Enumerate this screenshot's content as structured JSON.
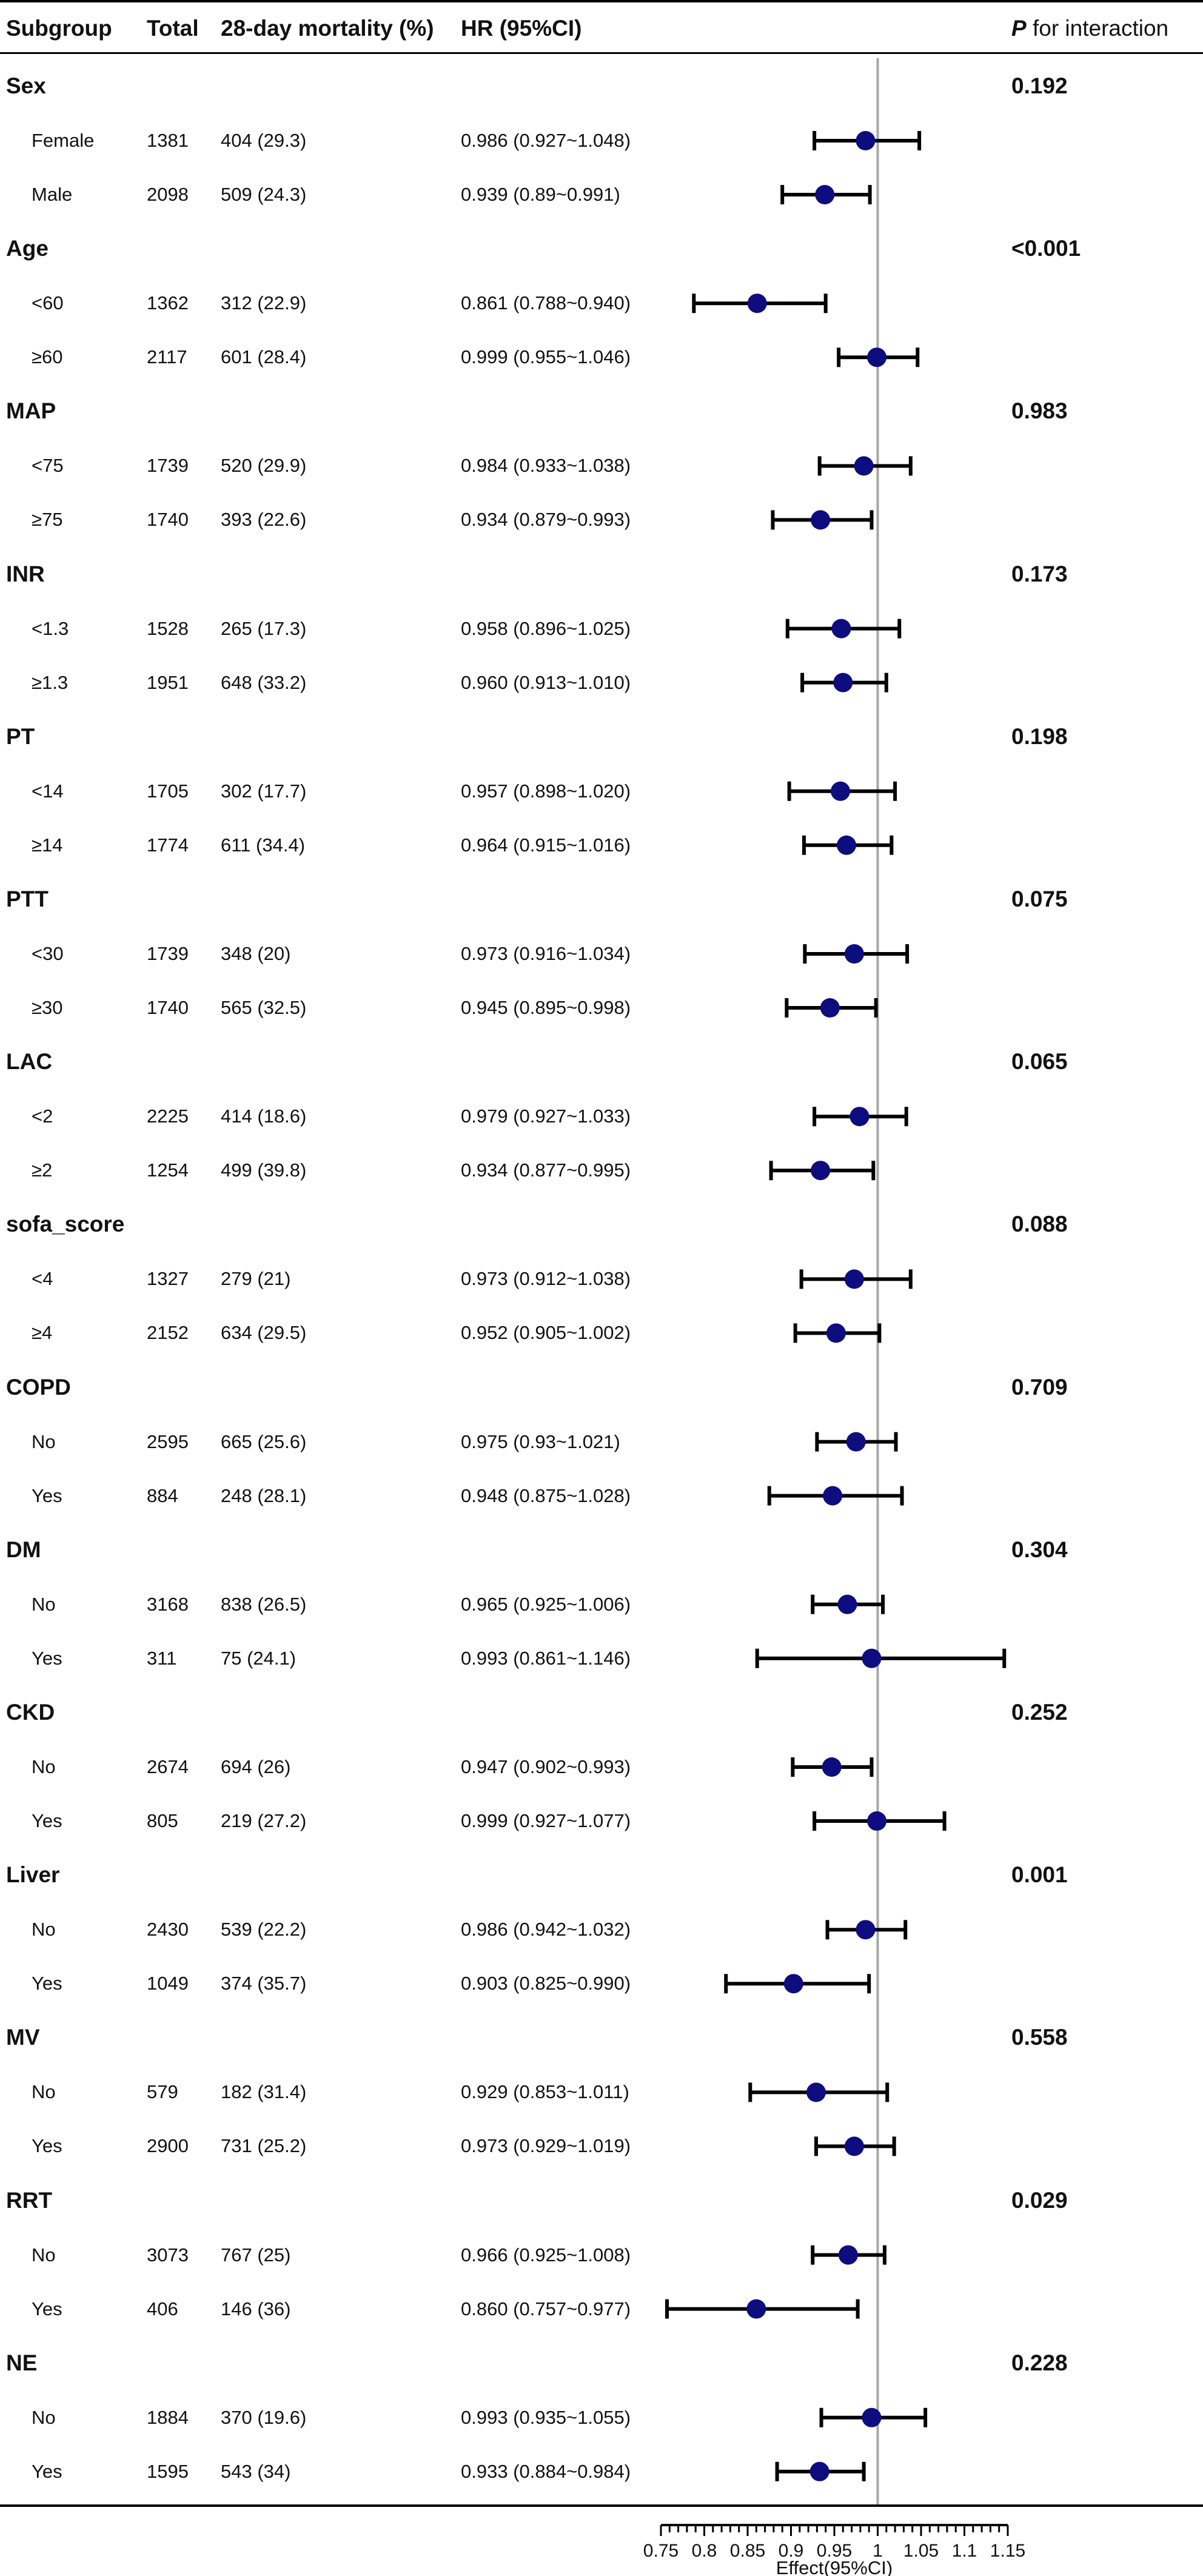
{
  "header": {
    "subgroup": "Subgroup",
    "total": "Total",
    "mortality": "28-day mortality (%)",
    "hr": "HR (95%CI)",
    "p_italic": "P",
    "p_rest": " for interaction"
  },
  "chart_data": {
    "type": "forest",
    "xlabel": "Effect(95%CI)",
    "xlim": [
      0.75,
      1.15
    ],
    "xticks": [
      "0.75",
      "0.8",
      "0.85",
      "0.9",
      "0.95",
      "1",
      "1.05",
      "1.1",
      "1.15"
    ],
    "reference_line": 1,
    "groups": [
      {
        "name": "Sex",
        "p": "0.192",
        "rows": [
          {
            "label": "Female",
            "total": "1381",
            "mortality": "404 (29.3)",
            "hr_text": "0.986 (0.927~1.048)",
            "hr": 0.986,
            "lo": 0.927,
            "hi": 1.048
          },
          {
            "label": "Male",
            "total": "2098",
            "mortality": "509 (24.3)",
            "hr_text": "0.939 (0.89~0.991)",
            "hr": 0.939,
            "lo": 0.89,
            "hi": 0.991
          }
        ]
      },
      {
        "name": "Age",
        "p": "<0.001",
        "rows": [
          {
            "label": "<60",
            "total": "1362",
            "mortality": "312 (22.9)",
            "hr_text": "0.861 (0.788~0.940)",
            "hr": 0.861,
            "lo": 0.788,
            "hi": 0.94
          },
          {
            "label": "≥60",
            "total": "2117",
            "mortality": "601 (28.4)",
            "hr_text": "0.999 (0.955~1.046)",
            "hr": 0.999,
            "lo": 0.955,
            "hi": 1.046
          }
        ]
      },
      {
        "name": "MAP",
        "p": "0.983",
        "rows": [
          {
            "label": "<75",
            "total": "1739",
            "mortality": "520 (29.9)",
            "hr_text": "0.984 (0.933~1.038)",
            "hr": 0.984,
            "lo": 0.933,
            "hi": 1.038
          },
          {
            "label": "≥75",
            "total": "1740",
            "mortality": "393 (22.6)",
            "hr_text": "0.934 (0.879~0.993)",
            "hr": 0.934,
            "lo": 0.879,
            "hi": 0.993
          }
        ]
      },
      {
        "name": "INR",
        "p": "0.173",
        "rows": [
          {
            "label": "<1.3",
            "total": "1528",
            "mortality": "265 (17.3)",
            "hr_text": "0.958 (0.896~1.025)",
            "hr": 0.958,
            "lo": 0.896,
            "hi": 1.025
          },
          {
            "label": "≥1.3",
            "total": "1951",
            "mortality": "648 (33.2)",
            "hr_text": "0.960 (0.913~1.010)",
            "hr": 0.96,
            "lo": 0.913,
            "hi": 1.01
          }
        ]
      },
      {
        "name": "PT",
        "p": "0.198",
        "rows": [
          {
            "label": "<14",
            "total": "1705",
            "mortality": "302 (17.7)",
            "hr_text": "0.957 (0.898~1.020)",
            "hr": 0.957,
            "lo": 0.898,
            "hi": 1.02
          },
          {
            "label": "≥14",
            "total": "1774",
            "mortality": "611 (34.4)",
            "hr_text": "0.964 (0.915~1.016)",
            "hr": 0.964,
            "lo": 0.915,
            "hi": 1.016
          }
        ]
      },
      {
        "name": "PTT",
        "p": "0.075",
        "rows": [
          {
            "label": "<30",
            "total": "1739",
            "mortality": "348 (20)",
            "hr_text": "0.973 (0.916~1.034)",
            "hr": 0.973,
            "lo": 0.916,
            "hi": 1.034
          },
          {
            "label": "≥30",
            "total": "1740",
            "mortality": "565 (32.5)",
            "hr_text": "0.945 (0.895~0.998)",
            "hr": 0.945,
            "lo": 0.895,
            "hi": 0.998
          }
        ]
      },
      {
        "name": "LAC",
        "p": "0.065",
        "rows": [
          {
            "label": "<2",
            "total": "2225",
            "mortality": "414 (18.6)",
            "hr_text": "0.979 (0.927~1.033)",
            "hr": 0.979,
            "lo": 0.927,
            "hi": 1.033
          },
          {
            "label": "≥2",
            "total": "1254",
            "mortality": "499 (39.8)",
            "hr_text": "0.934 (0.877~0.995)",
            "hr": 0.934,
            "lo": 0.877,
            "hi": 0.995
          }
        ]
      },
      {
        "name": "sofa_score",
        "p": "0.088",
        "rows": [
          {
            "label": "<4",
            "total": "1327",
            "mortality": "279 (21)",
            "hr_text": "0.973 (0.912~1.038)",
            "hr": 0.973,
            "lo": 0.912,
            "hi": 1.038
          },
          {
            "label": "≥4",
            "total": "2152",
            "mortality": "634 (29.5)",
            "hr_text": "0.952 (0.905~1.002)",
            "hr": 0.952,
            "lo": 0.905,
            "hi": 1.002
          }
        ]
      },
      {
        "name": "COPD",
        "p": "0.709",
        "rows": [
          {
            "label": "No",
            "total": "2595",
            "mortality": "665 (25.6)",
            "hr_text": "0.975 (0.93~1.021)",
            "hr": 0.975,
            "lo": 0.93,
            "hi": 1.021
          },
          {
            "label": "Yes",
            "total": "884",
            "mortality": "248 (28.1)",
            "hr_text": "0.948 (0.875~1.028)",
            "hr": 0.948,
            "lo": 0.875,
            "hi": 1.028
          }
        ]
      },
      {
        "name": "DM",
        "p": "0.304",
        "rows": [
          {
            "label": "No",
            "total": "3168",
            "mortality": "838 (26.5)",
            "hr_text": "0.965 (0.925~1.006)",
            "hr": 0.965,
            "lo": 0.925,
            "hi": 1.006
          },
          {
            "label": "Yes",
            "total": "311",
            "mortality": "75 (24.1)",
            "hr_text": "0.993 (0.861~1.146)",
            "hr": 0.993,
            "lo": 0.861,
            "hi": 1.146
          }
        ]
      },
      {
        "name": "CKD",
        "p": "0.252",
        "rows": [
          {
            "label": "No",
            "total": "2674",
            "mortality": "694 (26)",
            "hr_text": "0.947 (0.902~0.993)",
            "hr": 0.947,
            "lo": 0.902,
            "hi": 0.993
          },
          {
            "label": "Yes",
            "total": "805",
            "mortality": "219 (27.2)",
            "hr_text": "0.999 (0.927~1.077)",
            "hr": 0.999,
            "lo": 0.927,
            "hi": 1.077
          }
        ]
      },
      {
        "name": "Liver",
        "p": "0.001",
        "rows": [
          {
            "label": "No",
            "total": "2430",
            "mortality": "539 (22.2)",
            "hr_text": "0.986 (0.942~1.032)",
            "hr": 0.986,
            "lo": 0.942,
            "hi": 1.032
          },
          {
            "label": "Yes",
            "total": "1049",
            "mortality": "374 (35.7)",
            "hr_text": "0.903 (0.825~0.990)",
            "hr": 0.903,
            "lo": 0.825,
            "hi": 0.99
          }
        ]
      },
      {
        "name": "MV",
        "p": "0.558",
        "rows": [
          {
            "label": "No",
            "total": "579",
            "mortality": "182 (31.4)",
            "hr_text": "0.929 (0.853~1.011)",
            "hr": 0.929,
            "lo": 0.853,
            "hi": 1.011
          },
          {
            "label": "Yes",
            "total": "2900",
            "mortality": "731 (25.2)",
            "hr_text": "0.973 (0.929~1.019)",
            "hr": 0.973,
            "lo": 0.929,
            "hi": 1.019
          }
        ]
      },
      {
        "name": "RRT",
        "p": "0.029",
        "rows": [
          {
            "label": "No",
            "total": "3073",
            "mortality": "767 (25)",
            "hr_text": "0.966 (0.925~1.008)",
            "hr": 0.966,
            "lo": 0.925,
            "hi": 1.008
          },
          {
            "label": "Yes",
            "total": "406",
            "mortality": "146 (36)",
            "hr_text": "0.860 (0.757~0.977)",
            "hr": 0.86,
            "lo": 0.757,
            "hi": 0.977
          }
        ]
      },
      {
        "name": "NE",
        "p": "0.228",
        "rows": [
          {
            "label": "No",
            "total": "1884",
            "mortality": "370 (19.6)",
            "hr_text": "0.993 (0.935~1.055)",
            "hr": 0.993,
            "lo": 0.935,
            "hi": 1.055
          },
          {
            "label": "Yes",
            "total": "1595",
            "mortality": "543 (34)",
            "hr_text": "0.933 (0.884~0.984)",
            "hr": 0.933,
            "lo": 0.884,
            "hi": 0.984
          }
        ]
      }
    ]
  },
  "colors": {
    "point": "#0d0d80",
    "whisker": "#000000",
    "refline": "#a6a6a6",
    "text": "#111111"
  }
}
